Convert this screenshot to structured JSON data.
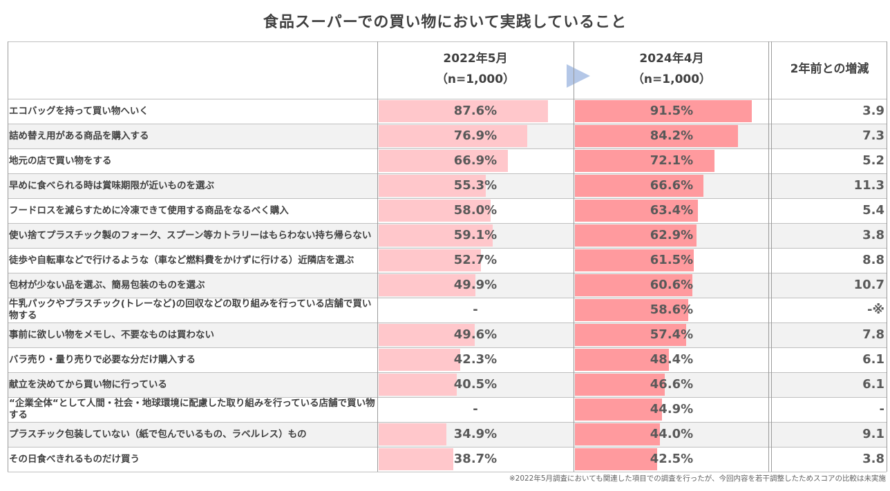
{
  "title": "食品スーパーでの買い物において実践していること",
  "headers": {
    "col1_date": "2022年5月",
    "col1_n": "（n=1,000）",
    "col2_date": "2024年4月",
    "col2_n": "（n=1,000）",
    "col3": "2年前との増減"
  },
  "footnote": "※2022年5月調査においても関連した項目での調査を行ったが、今回内容を若干調整したためスコアの比較は未実施",
  "colors": {
    "bar_2022": "#ffc7cb",
    "bar_2024": "#ff9a9e",
    "row_alt": "#f2f2f2",
    "arrow": "#b4c7e7"
  },
  "chart_data": {
    "type": "bar",
    "title": "食品スーパーでの買い物において実践していること",
    "series": [
      {
        "name": "2022年5月",
        "values": [
          87.6,
          76.9,
          66.9,
          55.3,
          58.0,
          59.1,
          52.7,
          49.9,
          null,
          49.6,
          42.3,
          40.5,
          null,
          34.9,
          38.7
        ]
      },
      {
        "name": "2024年4月",
        "values": [
          91.5,
          84.2,
          72.1,
          66.6,
          63.4,
          62.9,
          61.5,
          60.6,
          58.6,
          57.4,
          48.4,
          46.6,
          44.9,
          44.0,
          42.5
        ]
      }
    ],
    "rows": [
      {
        "label": "エコバッグを持って買い物へいく",
        "v2022": "87.6%",
        "v2024": "91.5%",
        "diff": "3.9"
      },
      {
        "label": "詰め替え用がある商品を購入する",
        "v2022": "76.9%",
        "v2024": "84.2%",
        "diff": "7.3"
      },
      {
        "label": "地元の店で買い物をする",
        "v2022": "66.9%",
        "v2024": "72.1%",
        "diff": "5.2"
      },
      {
        "label": "早めに食べられる時は賞味期限が近いものを選ぶ",
        "v2022": "55.3%",
        "v2024": "66.6%",
        "diff": "11.3"
      },
      {
        "label": "フードロスを減らすために冷凍できて使用する商品をなるべく購入",
        "v2022": "58.0%",
        "v2024": "63.4%",
        "diff": "5.4"
      },
      {
        "label": "使い捨てプラスチック製のフォーク、スプーン等カトラリーはもらわない持ち帰らない",
        "v2022": "59.1%",
        "v2024": "62.9%",
        "diff": "3.8"
      },
      {
        "label": "徒歩や自転車などで行けるような（車など燃料費をかけずに行ける）近隣店を選ぶ",
        "v2022": "52.7%",
        "v2024": "61.5%",
        "diff": "8.8"
      },
      {
        "label": "包材が少ない品を選ぶ、簡易包装のものを選ぶ",
        "v2022": "49.9%",
        "v2024": "60.6%",
        "diff": "10.7"
      },
      {
        "label": "牛乳パックやプラスチック(トレーなど)の回収などの取り組みを行っている店舗で買い物する",
        "v2022": "-",
        "v2024": "58.6%",
        "diff": "-※"
      },
      {
        "label": "事前に欲しい物をメモし、不要なものは買わない",
        "v2022": "49.6%",
        "v2024": "57.4%",
        "diff": "7.8"
      },
      {
        "label": "バラ売り・量り売りで必要な分だけ購入する",
        "v2022": "42.3%",
        "v2024": "48.4%",
        "diff": "6.1"
      },
      {
        "label": "献立を決めてから買い物に行っている",
        "v2022": "40.5%",
        "v2024": "46.6%",
        "diff": "6.1"
      },
      {
        "label": "“企業全体“として人間・社会・地球環境に配慮した取り組みを行っている店舗で買い物する",
        "v2022": "-",
        "v2024": "44.9%",
        "diff": "-"
      },
      {
        "label": "プラスチック包装していない（紙で包んでいるもの、ラベルレス）もの",
        "v2022": "34.9%",
        "v2024": "44.0%",
        "diff": "9.1"
      },
      {
        "label": "その日食べきれるものだけ買う",
        "v2022": "38.7%",
        "v2024": "42.5%",
        "diff": "3.8"
      }
    ]
  }
}
